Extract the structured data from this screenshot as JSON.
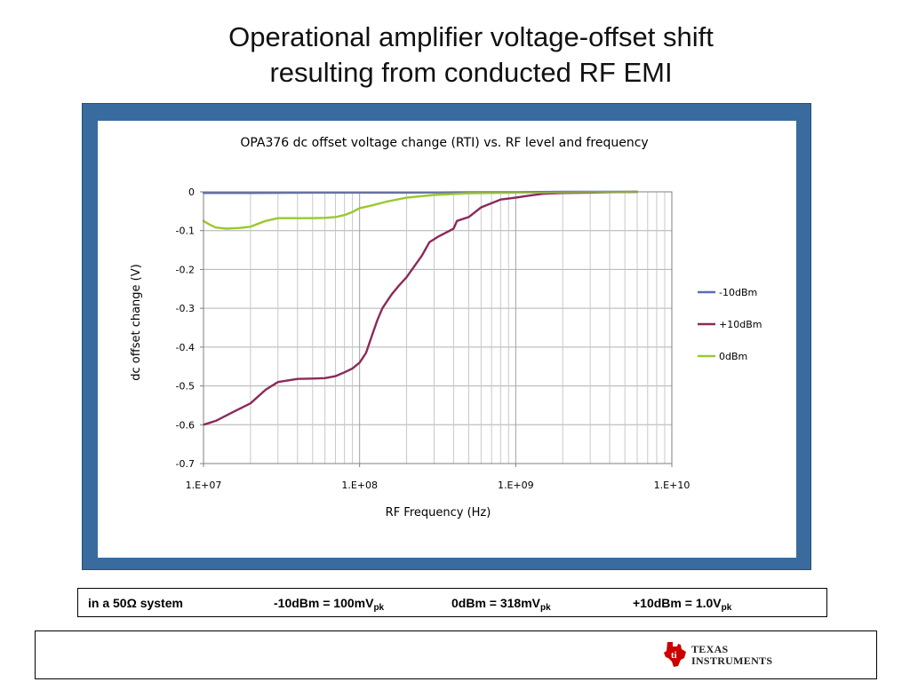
{
  "slide": {
    "title_line1": "Operational amplifier voltage-offset shift",
    "title_line2": "resulting from conducted RF EMI"
  },
  "chart_data": {
    "type": "line",
    "title": "OPA376 dc offset voltage change (RTI) vs. RF level and frequency",
    "xlabel": "RF Frequency (Hz)",
    "ylabel": "dc offset change (V)",
    "xscale": "log",
    "xlim": [
      10000000,
      10000000000
    ],
    "ylim": [
      -0.7,
      0
    ],
    "x_ticks": [
      10000000,
      100000000,
      1000000000,
      10000000000
    ],
    "x_tick_labels": [
      "1.E+07",
      "1.E+08",
      "1.E+09",
      "1.E+10"
    ],
    "y_ticks": [
      0,
      -0.1,
      -0.2,
      -0.3,
      -0.4,
      -0.5,
      -0.6,
      -0.7
    ],
    "y_tick_labels": [
      "0",
      "-0.1",
      "-0.2",
      "-0.3",
      "-0.4",
      "-0.5",
      "-0.6",
      "-0.7"
    ],
    "grid": true,
    "legend_position": "right",
    "series": [
      {
        "name": "-10dBm",
        "color": "#5b6bb5",
        "x": [
          10000000,
          20000000,
          50000000,
          100000000,
          200000000,
          500000000,
          1000000000,
          2000000000,
          6000000000
        ],
        "y": [
          -0.003,
          -0.003,
          -0.002,
          -0.002,
          -0.002,
          -0.001,
          -0.001,
          0,
          0
        ]
      },
      {
        "name": "+10dBm",
        "color": "#8b2a5a",
        "x": [
          10000000,
          12000000,
          15000000,
          20000000,
          25000000,
          30000000,
          40000000,
          50000000,
          60000000,
          70000000,
          80000000,
          90000000,
          100000000,
          110000000,
          120000000,
          130000000,
          140000000,
          160000000,
          180000000,
          200000000,
          250000000,
          280000000,
          320000000,
          400000000,
          420000000,
          500000000,
          600000000,
          800000000,
          1000000000,
          1200000000,
          1500000000,
          2000000000,
          3000000000,
          4000000000,
          6000000000
        ],
        "y": [
          -0.6,
          -0.59,
          -0.57,
          -0.545,
          -0.51,
          -0.49,
          -0.482,
          -0.481,
          -0.48,
          -0.475,
          -0.465,
          -0.455,
          -0.44,
          -0.415,
          -0.37,
          -0.33,
          -0.3,
          -0.265,
          -0.24,
          -0.22,
          -0.165,
          -0.13,
          -0.115,
          -0.095,
          -0.075,
          -0.065,
          -0.04,
          -0.02,
          -0.015,
          -0.01,
          -0.005,
          -0.003,
          -0.002,
          -0.001,
          0
        ]
      },
      {
        "name": "0dBm",
        "color": "#99c92e",
        "x": [
          10000000,
          11000000,
          12000000,
          14000000,
          17000000,
          20000000,
          25000000,
          30000000,
          40000000,
          50000000,
          60000000,
          70000000,
          80000000,
          90000000,
          100000000,
          120000000,
          150000000,
          200000000,
          300000000,
          500000000,
          1000000000,
          2000000000,
          6000000000
        ],
        "y": [
          -0.075,
          -0.085,
          -0.092,
          -0.095,
          -0.093,
          -0.09,
          -0.075,
          -0.068,
          -0.068,
          -0.068,
          -0.067,
          -0.065,
          -0.06,
          -0.052,
          -0.042,
          -0.035,
          -0.025,
          -0.015,
          -0.008,
          -0.004,
          -0.002,
          -0.001,
          0
        ]
      }
    ]
  },
  "footer": {
    "system": "in a 50Ω system",
    "m10_text": "-10dBm = 100mV",
    "m10_sub": "pk",
    "z0_text": "0dBm = 318mV",
    "z0_sub": "pk",
    "p10_text": "+10dBm = 1.0V",
    "p10_sub": "pk"
  },
  "logo": {
    "line1": "Texas",
    "line2": "Instruments",
    "color": "#cc0000"
  }
}
